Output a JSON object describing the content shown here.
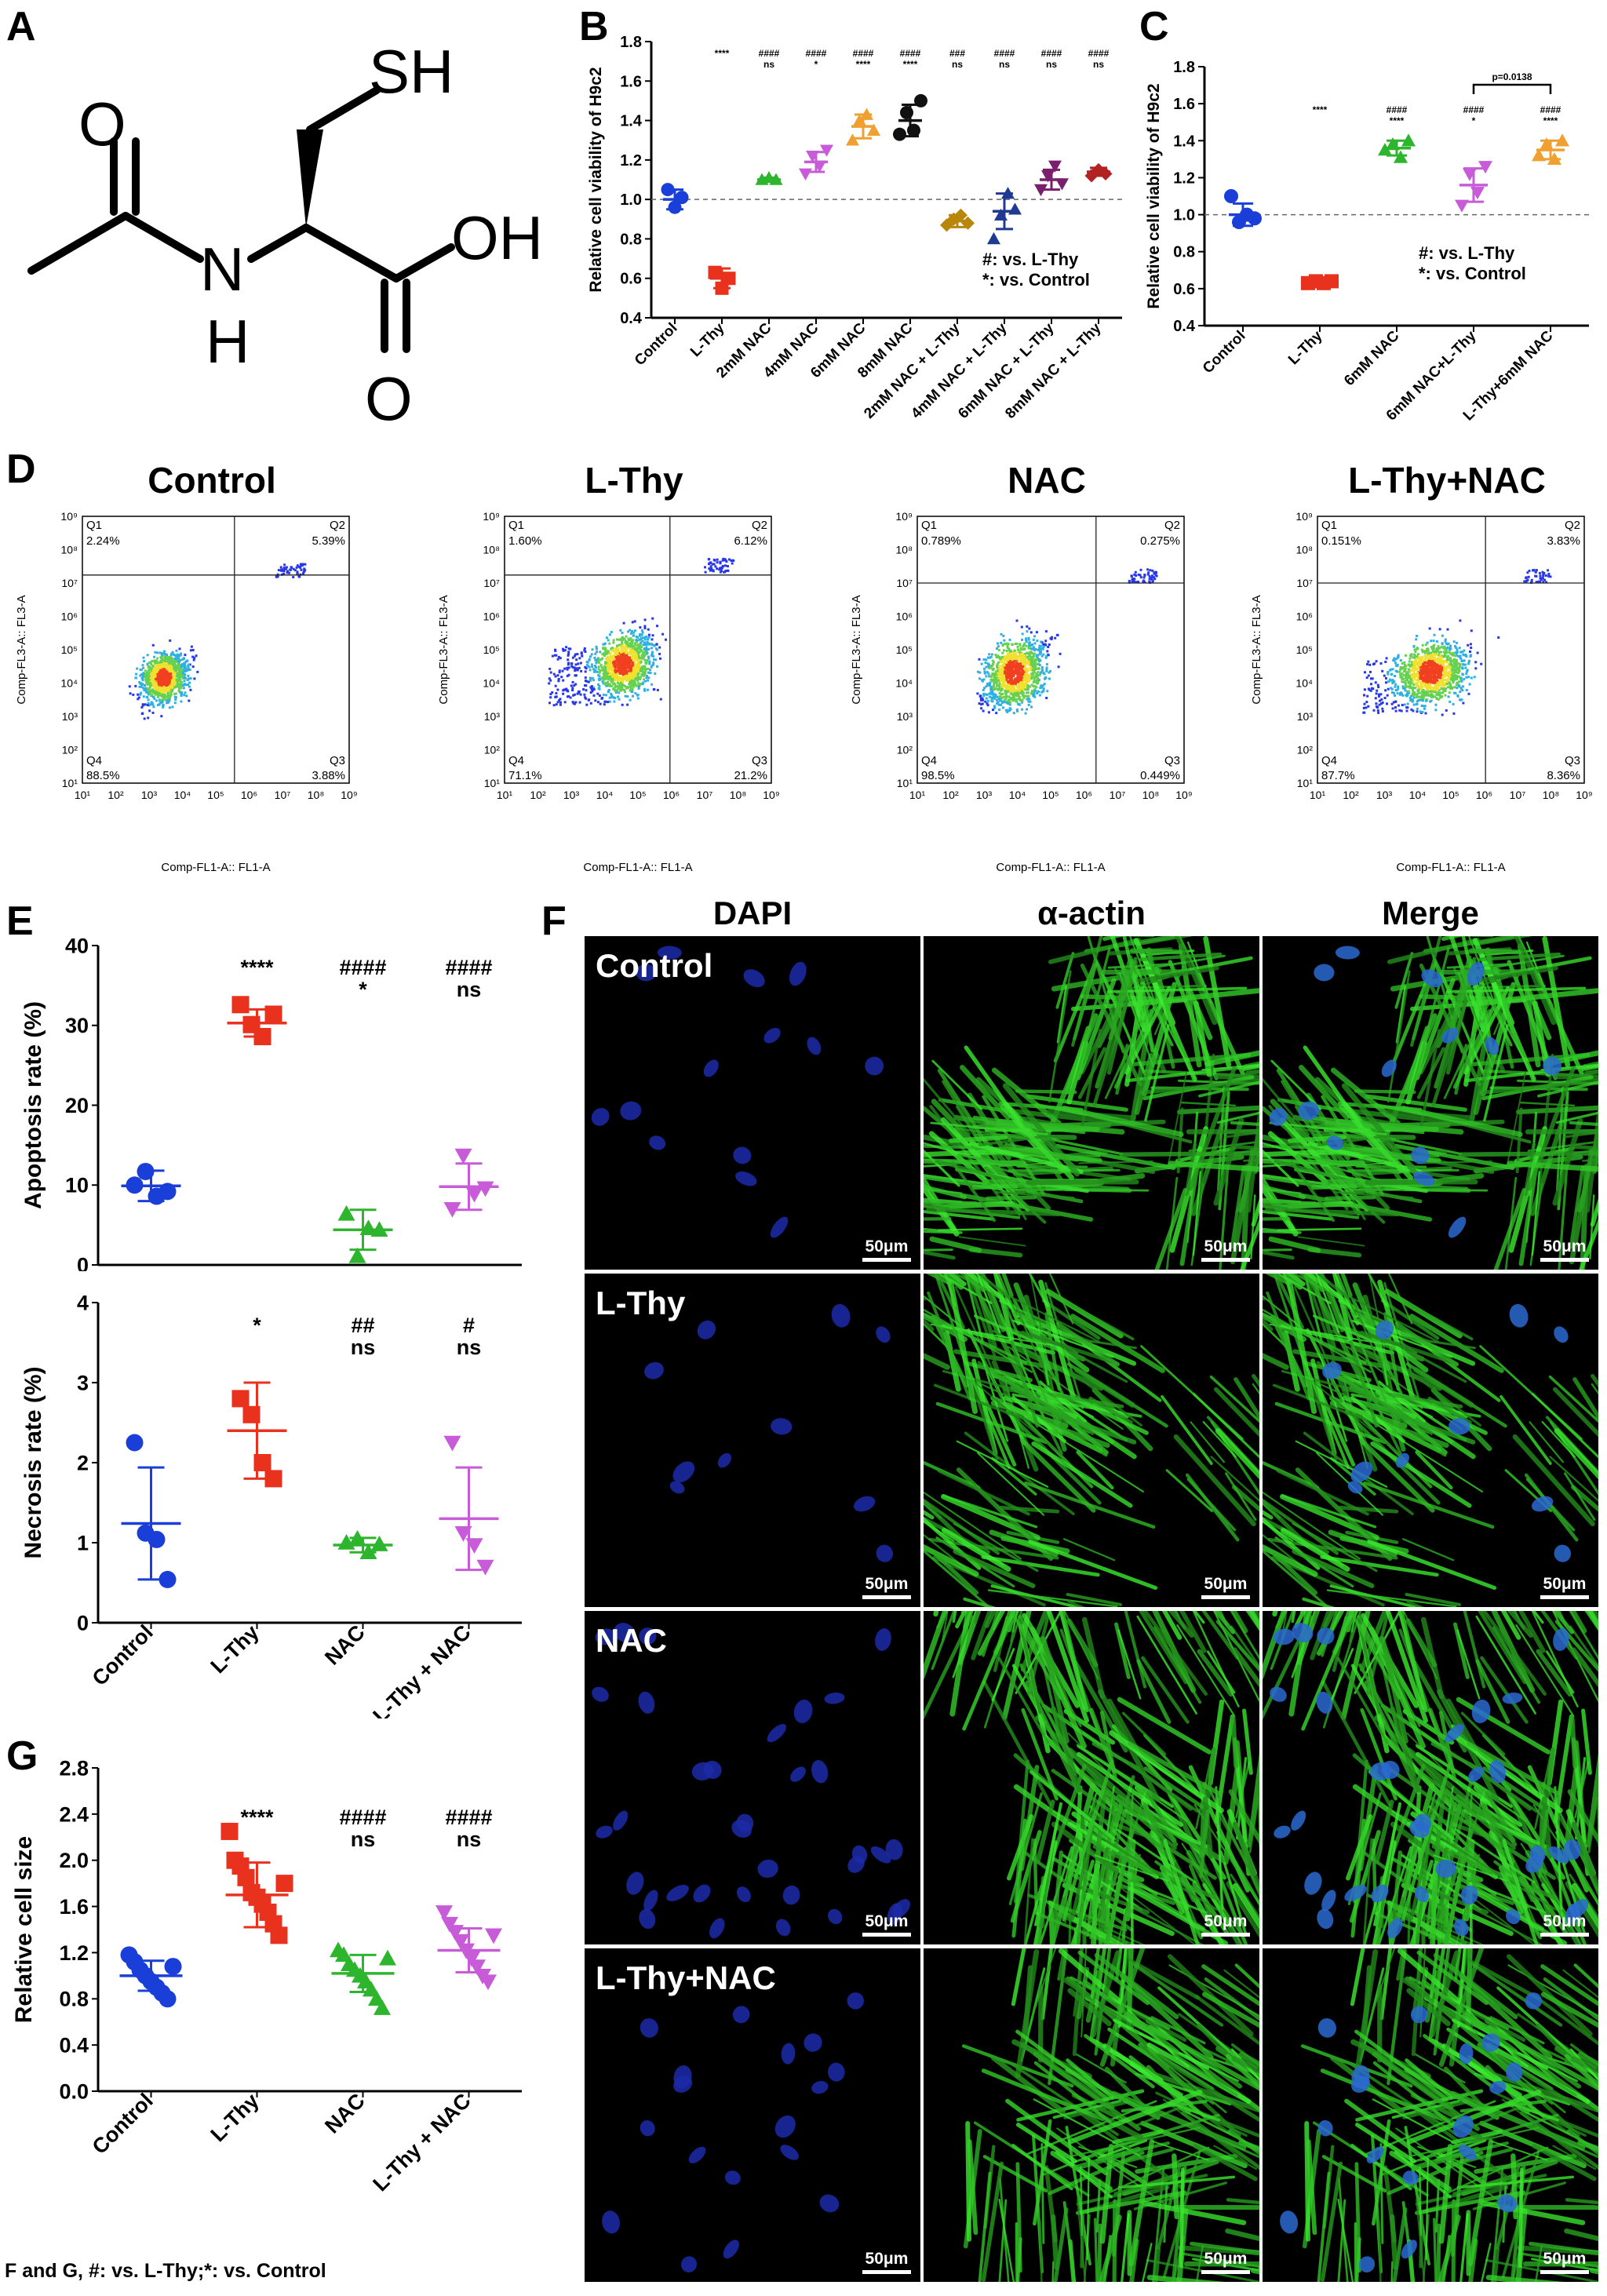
{
  "panels": {
    "A": {
      "letter": "A",
      "atoms": {
        "sh": "SH",
        "o1": "O",
        "oh": "OH",
        "n": "N",
        "h": "H",
        "o2": "O"
      }
    },
    "B": {
      "letter": "B",
      "legend": [
        "#: vs. L-Thy",
        "*: vs. Control"
      ]
    },
    "C": {
      "letter": "C",
      "legend": [
        "#: vs. L-Thy",
        "*: vs. Control"
      ],
      "bracket_label": "p=0.0138"
    },
    "D": {
      "letter": "D"
    },
    "E": {
      "letter": "E"
    },
    "F": {
      "letter": "F",
      "columns": [
        "DAPI",
        "α-actin",
        "Merge"
      ],
      "rows": [
        "Control",
        "L-Thy",
        "NAC",
        "L-Thy+NAC"
      ],
      "scale": "50μm"
    },
    "G": {
      "letter": "G"
    }
  },
  "footnote": "F and G, #: vs. L-Thy;*: vs. Control",
  "flow": {
    "titles": [
      "Control",
      "L-Thy",
      "NAC",
      "L-Thy+NAC"
    ],
    "x_label": "Comp-FL1-A:: FL1-A",
    "y_label": "Comp-FL3-A:: FL3-A",
    "tick_labels": [
      "10¹",
      "10²",
      "10³",
      "10⁴",
      "10⁵",
      "10⁶",
      "10⁷",
      "10⁸",
      "10⁹"
    ],
    "quadrant_names": [
      "Q1",
      "Q2",
      "Q3",
      "Q4"
    ],
    "quadrants": [
      {
        "q1": "2.24%",
        "q2": "5.39%",
        "q3": "3.88%",
        "q4": "88.5%"
      },
      {
        "q1": "1.60%",
        "q2": "6.12%",
        "q3": "21.2%",
        "q4": "71.1%"
      },
      {
        "q1": "0.789%",
        "q2": "0.275%",
        "q3": "0.449%",
        "q4": "98.5%"
      },
      {
        "q1": "0.151%",
        "q2": "3.83%",
        "q3": "8.36%",
        "q4": "87.7%"
      }
    ]
  },
  "colors": {
    "control": "#1a3fd8",
    "lthy": "#e8321e",
    "nac2": "#2db52d",
    "nac4": "#c75bd8",
    "nac6": "#f0a030",
    "nac8": "#111111",
    "combo2": "#b8860b",
    "combo4": "#1f3a93",
    "combo6": "#7a1f6e",
    "combo8": "#b22222",
    "nac": "#2db52d",
    "combo": "#c75bd8",
    "combo6c": "#f0a030"
  },
  "chart_data": [
    {
      "id": "B",
      "type": "scatter",
      "ylabel": "Relative cell viability of H9c2",
      "ylim": [
        0.4,
        1.8
      ],
      "yticks": [
        0.4,
        0.6,
        0.8,
        1.0,
        1.2,
        1.4,
        1.6,
        1.8
      ],
      "reference_line": 1.0,
      "categories": [
        "Control",
        "L-Thy",
        "2mM NAC",
        "4mM NAC",
        "6mM NAC",
        "8mM NAC",
        "2mM NAC + L-Thy",
        "4mM NAC + L-Thy",
        "6mM NAC + L-Thy",
        "8mM NAC + L-Thy"
      ],
      "series": [
        {
          "points": [
            1.05,
            0.96,
            1.01
          ],
          "mean": 1.0,
          "sd": 0.05
        },
        {
          "points": [
            0.63,
            0.55,
            0.6
          ],
          "mean": 0.6,
          "sd": 0.05
        },
        {
          "points": [
            1.1,
            1.11,
            1.1
          ],
          "mean": 1.1,
          "sd": 0.01
        },
        {
          "points": [
            1.13,
            1.22,
            1.17,
            1.25
          ],
          "mean": 1.19,
          "sd": 0.05
        },
        {
          "points": [
            1.3,
            1.4,
            1.43,
            1.35
          ],
          "mean": 1.37,
          "sd": 0.06
        },
        {
          "points": [
            1.33,
            1.44,
            1.35,
            1.5
          ],
          "mean": 1.4,
          "sd": 0.08
        },
        {
          "points": [
            0.87,
            0.9,
            0.92,
            0.88
          ],
          "mean": 0.89,
          "sd": 0.03
        },
        {
          "points": [
            0.8,
            0.92,
            1.03,
            0.95
          ],
          "mean": 0.94,
          "sd": 0.09
        },
        {
          "points": [
            1.05,
            1.12,
            1.17,
            1.08
          ],
          "mean": 1.1,
          "sd": 0.05
        },
        {
          "points": [
            1.12,
            1.15,
            1.13
          ],
          "mean": 1.14,
          "sd": 0.02
        }
      ],
      "annotations": [
        {
          "cat": 1,
          "lines": [
            "****"
          ]
        },
        {
          "cat": 2,
          "lines": [
            "####",
            "ns"
          ]
        },
        {
          "cat": 3,
          "lines": [
            "####",
            "*"
          ]
        },
        {
          "cat": 4,
          "lines": [
            "####",
            "****"
          ]
        },
        {
          "cat": 5,
          "lines": [
            "####",
            "****"
          ]
        },
        {
          "cat": 6,
          "lines": [
            "###",
            "ns"
          ]
        },
        {
          "cat": 7,
          "lines": [
            "####",
            "ns"
          ]
        },
        {
          "cat": 8,
          "lines": [
            "####",
            "ns"
          ]
        },
        {
          "cat": 9,
          "lines": [
            "####",
            "ns"
          ]
        }
      ]
    },
    {
      "id": "C",
      "type": "scatter",
      "ylabel": "Relative cell viability of H9c2",
      "ylim": [
        0.4,
        1.8
      ],
      "yticks": [
        0.4,
        0.6,
        0.8,
        1.0,
        1.2,
        1.4,
        1.6,
        1.8
      ],
      "reference_line": 1.0,
      "categories": [
        "Control",
        "L-Thy",
        "6mM NAC",
        "6mM NAC+L-Thy",
        "L-Thy+6mM NAC"
      ],
      "series": [
        {
          "points": [
            1.1,
            0.96,
            1.0,
            0.98
          ],
          "mean": 1.0,
          "sd": 0.06
        },
        {
          "points": [
            0.63,
            0.64,
            0.63,
            0.64
          ],
          "mean": 0.635,
          "sd": 0.01
        },
        {
          "points": [
            1.35,
            1.38,
            1.31,
            1.4
          ],
          "mean": 1.36,
          "sd": 0.04
        },
        {
          "points": [
            1.05,
            1.22,
            1.12,
            1.26
          ],
          "mean": 1.16,
          "sd": 0.09
        },
        {
          "points": [
            1.32,
            1.38,
            1.3,
            1.4
          ],
          "mean": 1.35,
          "sd": 0.05
        }
      ],
      "annotations": [
        {
          "cat": 1,
          "lines": [
            "****"
          ]
        },
        {
          "cat": 2,
          "lines": [
            "####",
            "****"
          ]
        },
        {
          "cat": 3,
          "lines": [
            "####",
            "*"
          ]
        },
        {
          "cat": 4,
          "lines": [
            "####",
            "****"
          ]
        }
      ]
    },
    {
      "id": "E-top",
      "type": "scatter",
      "ylabel": "Apoptosis rate (%)",
      "ylim": [
        0,
        40
      ],
      "yticks": [
        0,
        10,
        20,
        30,
        40
      ],
      "categories": [
        "Control",
        "L-Thy",
        "NAC",
        "L-Thy + NAC"
      ],
      "series": [
        {
          "points": [
            10.0,
            11.7,
            8.6,
            9.2
          ],
          "mean": 9.9,
          "sd": 1.9
        },
        {
          "points": [
            32.6,
            30.1,
            28.6,
            31.4
          ],
          "mean": 30.3,
          "sd": 1.7
        },
        {
          "points": [
            6.4,
            1.1,
            4.6,
            4.4
          ],
          "mean": 4.4,
          "sd": 2.5
        },
        {
          "points": [
            7.0,
            13.7,
            8.9,
            9.6
          ],
          "mean": 9.8,
          "sd": 2.9
        }
      ],
      "annotations": [
        {
          "cat": 1,
          "lines": [
            "****"
          ]
        },
        {
          "cat": 2,
          "lines": [
            "####",
            "*"
          ]
        },
        {
          "cat": 3,
          "lines": [
            "####",
            "ns"
          ]
        }
      ]
    },
    {
      "id": "E-bottom",
      "type": "scatter",
      "ylabel": "Necrosis rate (%)",
      "ylim": [
        0,
        4
      ],
      "yticks": [
        0,
        1,
        2,
        3,
        4
      ],
      "categories": [
        "Control",
        "L-Thy",
        "NAC",
        "L-Thy + NAC"
      ],
      "series": [
        {
          "points": [
            2.25,
            1.12,
            1.04,
            0.54
          ],
          "mean": 1.24,
          "sd": 0.7
        },
        {
          "points": [
            2.8,
            2.6,
            2.0,
            1.8
          ],
          "mean": 2.4,
          "sd": 0.6
        },
        {
          "points": [
            1.0,
            1.05,
            0.88,
            0.98
          ],
          "mean": 0.97,
          "sd": 0.09
        },
        {
          "points": [
            2.25,
            1.12,
            0.97,
            0.7
          ],
          "mean": 1.3,
          "sd": 0.64
        }
      ],
      "annotations": [
        {
          "cat": 1,
          "lines": [
            "*"
          ]
        },
        {
          "cat": 2,
          "lines": [
            "##",
            "ns"
          ]
        },
        {
          "cat": 3,
          "lines": [
            "#",
            "ns"
          ]
        }
      ]
    },
    {
      "id": "G",
      "type": "scatter",
      "ylabel": "Relative cell size",
      "ylim": [
        0,
        2.8
      ],
      "yticks": [
        0.0,
        0.4,
        0.8,
        1.2,
        1.6,
        2.0,
        2.4,
        2.8
      ],
      "categories": [
        "Control",
        "L-Thy",
        "NAC",
        "L-Thy + NAC"
      ],
      "series": [
        {
          "points": [
            1.18,
            1.12,
            1.05,
            1.0,
            0.95,
            0.9,
            0.85,
            0.8,
            1.08
          ],
          "mean": 1.0,
          "sd": 0.13
        },
        {
          "points": [
            2.25,
            2.0,
            1.95,
            1.85,
            1.72,
            1.68,
            1.62,
            1.55,
            1.45,
            1.35,
            1.8
          ],
          "mean": 1.7,
          "sd": 0.28
        },
        {
          "points": [
            1.22,
            1.18,
            1.1,
            1.05,
            1.0,
            0.95,
            0.88,
            0.8,
            0.72,
            1.15
          ],
          "mean": 1.02,
          "sd": 0.16
        },
        {
          "points": [
            1.55,
            1.45,
            1.38,
            1.3,
            1.22,
            1.15,
            1.08,
            1.0,
            0.95,
            1.35
          ],
          "mean": 1.22,
          "sd": 0.19
        }
      ],
      "annotations": [
        {
          "cat": 1,
          "lines": [
            "****"
          ]
        },
        {
          "cat": 2,
          "lines": [
            "####",
            "ns"
          ]
        },
        {
          "cat": 3,
          "lines": [
            "####",
            "ns"
          ]
        }
      ]
    }
  ]
}
